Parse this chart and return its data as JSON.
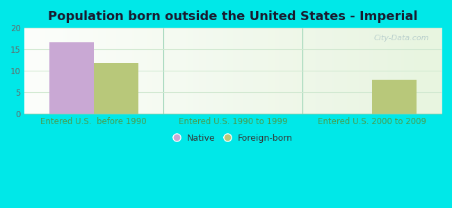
{
  "title": "Population born outside the United States - Imperial",
  "categories": [
    "Entered U.S.  before 1990",
    "Entered U.S. 1990 to 1999",
    "Entered U.S. 2000 to 2009"
  ],
  "native_values": [
    16.7,
    0,
    0
  ],
  "foreign_values": [
    11.8,
    0,
    8.0
  ],
  "native_color": "#c9a8d4",
  "foreign_color": "#b8c87a",
  "ylim": [
    0,
    20
  ],
  "yticks": [
    0,
    5,
    10,
    15,
    20
  ],
  "bar_width": 0.32,
  "background_outer": "#00e8e8",
  "background_inner_color1": "#e8f5e0",
  "background_inner_color2": "#ffffff",
  "grid_color": "#d0e8d0",
  "title_fontsize": 13,
  "tick_fontsize": 8.5,
  "legend_native_label": "Native",
  "legend_foreign_label": "Foreign-born",
  "watermark": "City-Data.com",
  "xticklabel_color": "#4a9a4a",
  "ytick_color": "#666666",
  "divider_color": "#88ccaa",
  "spine_color": "#88ccaa"
}
